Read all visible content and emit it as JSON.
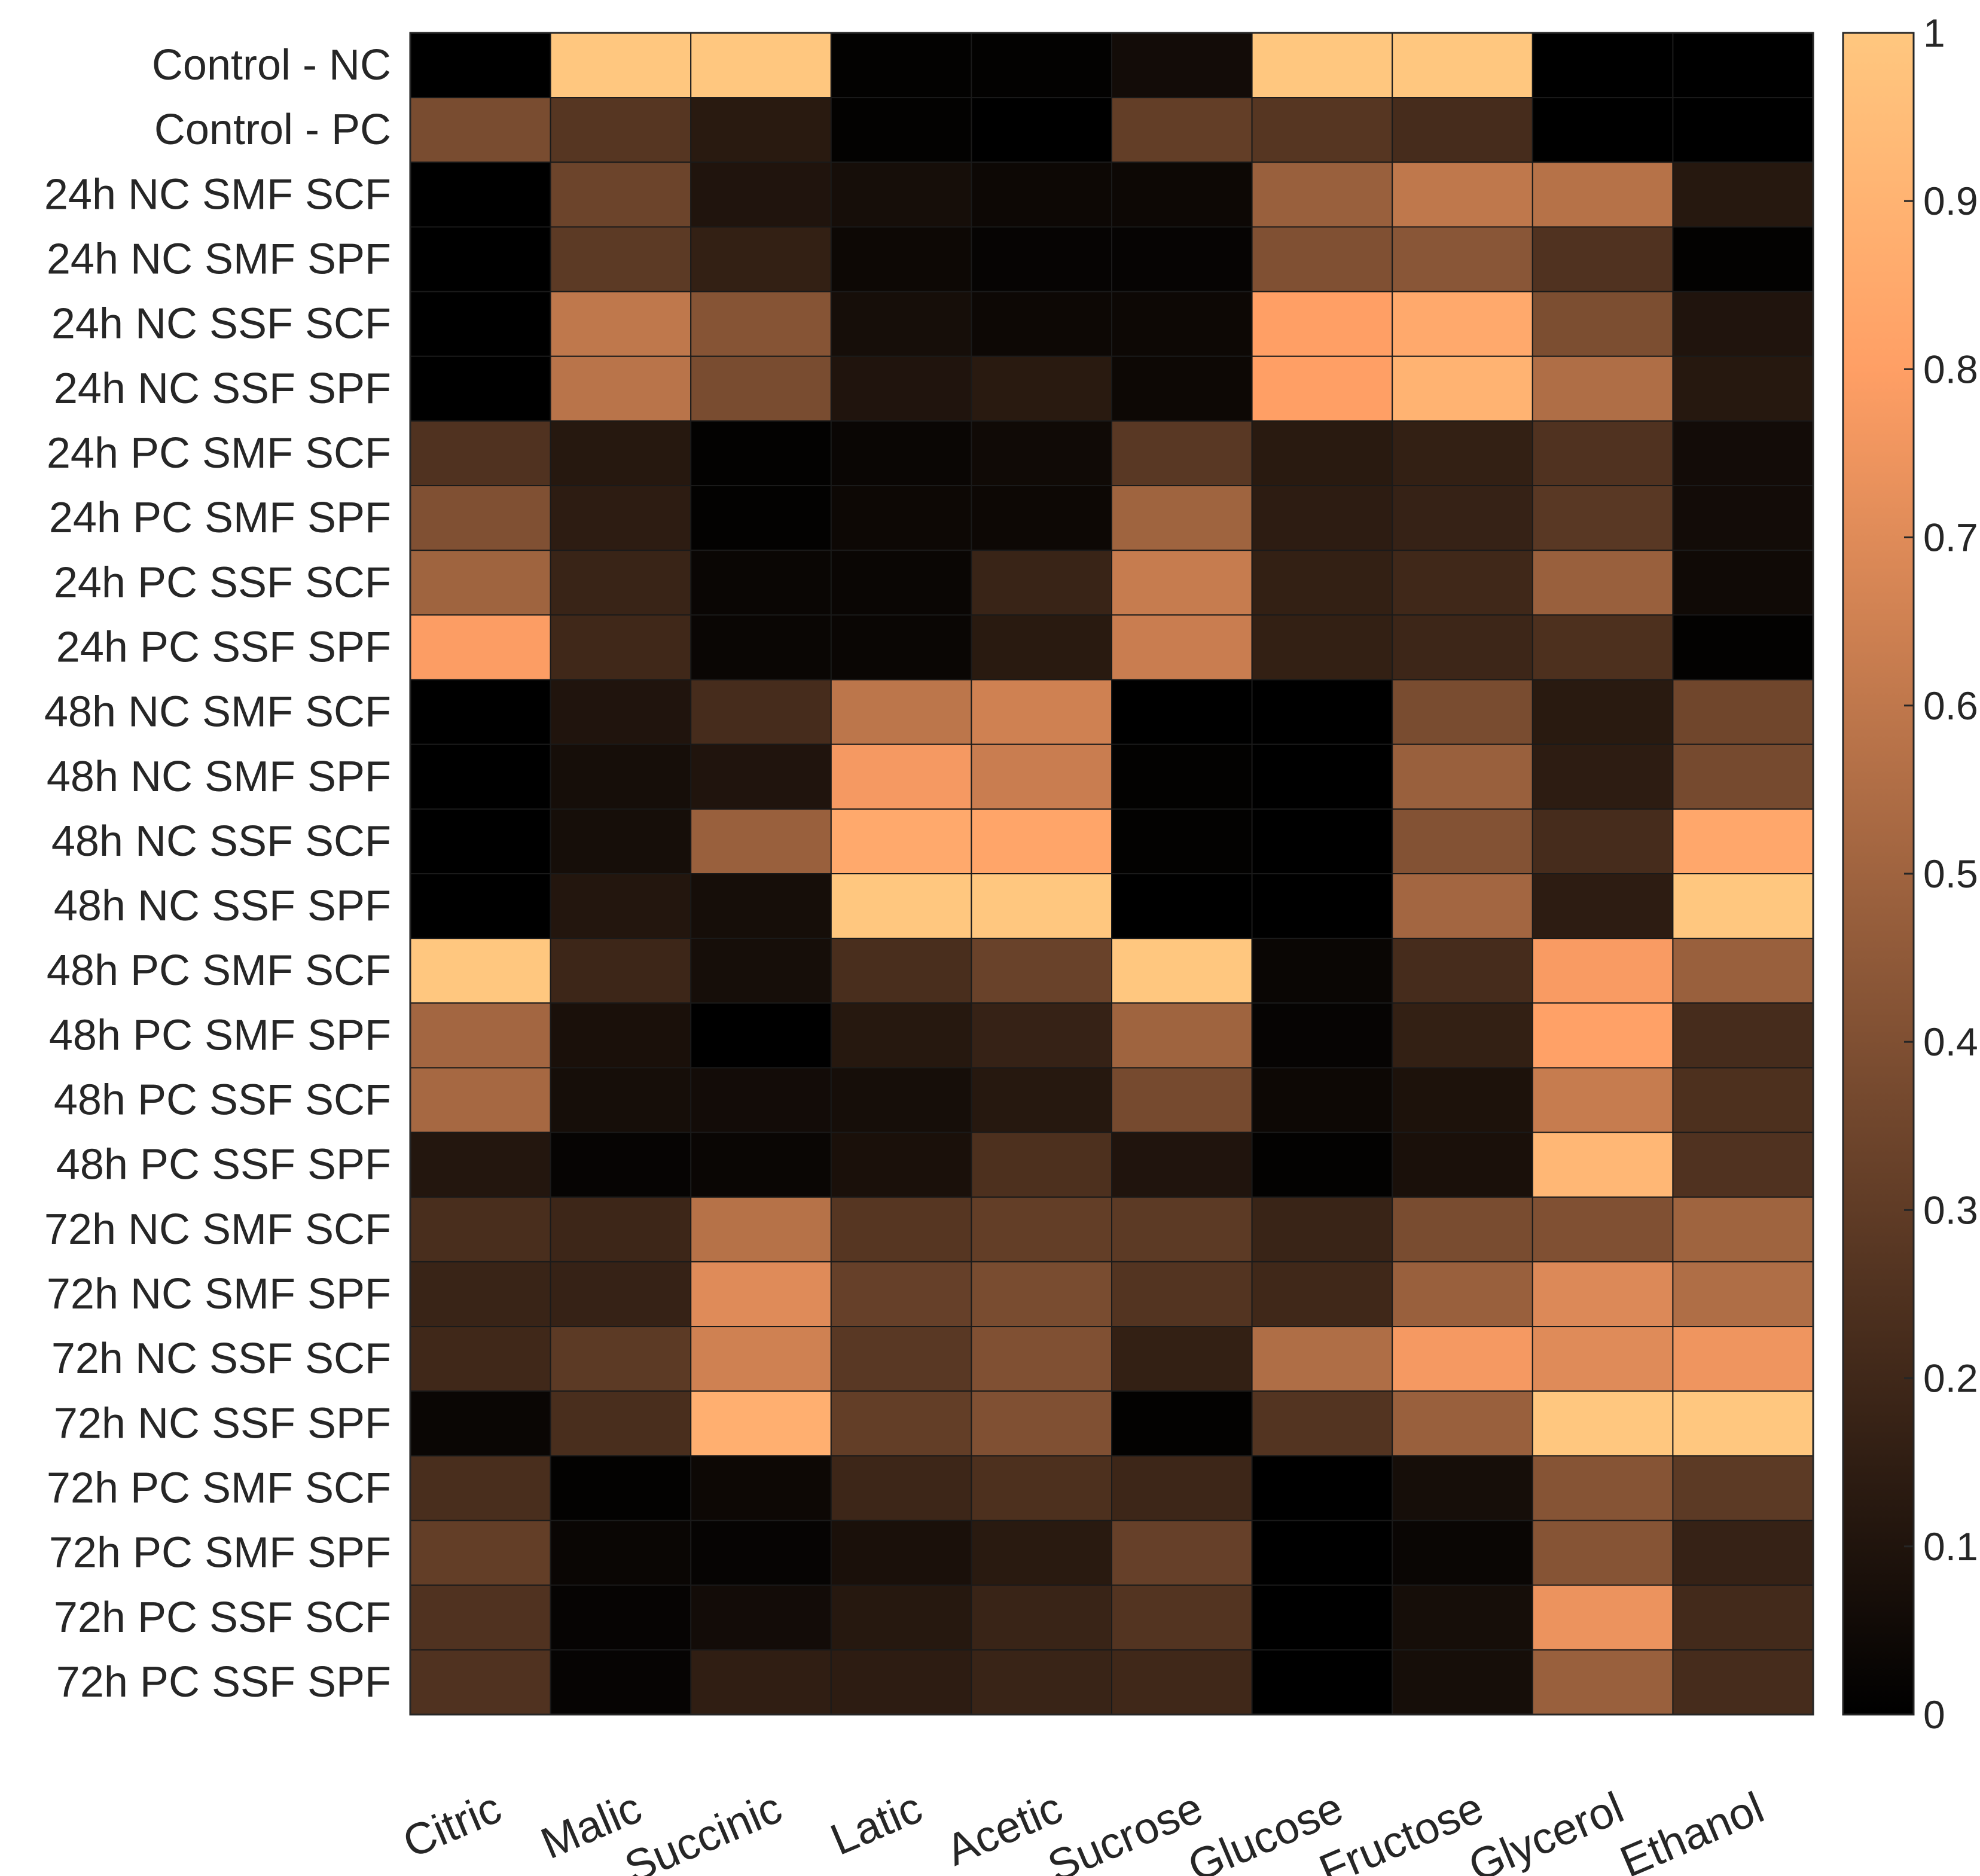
{
  "chart_data": {
    "type": "heatmap",
    "title": "",
    "xlabel": "",
    "ylabel": "",
    "colormap": "copper",
    "clim": [
      0,
      1
    ],
    "colorbar": {
      "ticks": [
        0,
        0.1,
        0.2,
        0.3,
        0.4,
        0.5,
        0.6,
        0.7,
        0.8,
        0.9,
        1
      ],
      "tick_labels": [
        "0",
        "0.1",
        "0.2",
        "0.3",
        "0.4",
        "0.5",
        "0.6",
        "0.7",
        "0.8",
        "0.9",
        "1"
      ]
    },
    "columns": [
      "Citric",
      "Malic",
      "Succinic",
      "Latic",
      "Acetic",
      "Sucrose",
      "Glucose",
      "Fructose",
      "Glycerol",
      "Ethanol"
    ],
    "rows": [
      "Control - NC",
      "Control - PC",
      "24h NC SMF SCF",
      "24h NC SMF SPF",
      "24h NC SSF SCF",
      "24h NC SSF SPF",
      "24h PC SMF SCF",
      "24h PC SMF SPF",
      "24h PC SSF SCF",
      "24h PC SSF SPF",
      "48h NC SMF SCF",
      "48h NC SMF SPF",
      "48h NC SSF SCF",
      "48h NC SSF SPF",
      "48h PC SMF SCF",
      "48h PC SMF SPF",
      "48h PC SSF SCF",
      "48h PC SSF SPF",
      "72h NC SMF SCF",
      "72h NC SMF SPF",
      "72h NC SSF SCF",
      "72h NC SSF SPF",
      "72h PC SMF SCF",
      "72h PC SMF SPF",
      "72h PC SSF SCF",
      "72h PC SSF SPF"
    ],
    "values": [
      [
        0.0,
        1.0,
        1.0,
        0.01,
        0.01,
        0.06,
        1.0,
        1.0,
        0.0,
        0.0
      ],
      [
        0.38,
        0.27,
        0.13,
        0.01,
        0.0,
        0.31,
        0.27,
        0.22,
        0.0,
        0.0
      ],
      [
        0.0,
        0.34,
        0.1,
        0.07,
        0.04,
        0.04,
        0.48,
        0.6,
        0.57,
        0.12
      ],
      [
        0.0,
        0.29,
        0.16,
        0.04,
        0.02,
        0.02,
        0.4,
        0.43,
        0.25,
        0.01
      ],
      [
        0.0,
        0.6,
        0.42,
        0.07,
        0.04,
        0.04,
        0.8,
        0.85,
        0.39,
        0.1
      ],
      [
        0.0,
        0.58,
        0.38,
        0.1,
        0.13,
        0.04,
        0.8,
        0.9,
        0.55,
        0.12
      ],
      [
        0.25,
        0.12,
        0.01,
        0.03,
        0.05,
        0.28,
        0.13,
        0.16,
        0.25,
        0.06
      ],
      [
        0.4,
        0.14,
        0.01,
        0.04,
        0.04,
        0.5,
        0.14,
        0.17,
        0.28,
        0.06
      ],
      [
        0.5,
        0.18,
        0.03,
        0.03,
        0.18,
        0.62,
        0.16,
        0.2,
        0.48,
        0.05
      ],
      [
        0.79,
        0.2,
        0.03,
        0.03,
        0.13,
        0.63,
        0.16,
        0.19,
        0.24,
        0.01
      ],
      [
        0.0,
        0.1,
        0.22,
        0.59,
        0.65,
        0.0,
        0.0,
        0.38,
        0.13,
        0.35
      ],
      [
        0.0,
        0.07,
        0.1,
        0.77,
        0.63,
        0.01,
        0.0,
        0.48,
        0.14,
        0.37
      ],
      [
        0.0,
        0.07,
        0.48,
        0.85,
        0.83,
        0.01,
        0.0,
        0.41,
        0.22,
        0.84
      ],
      [
        0.0,
        0.11,
        0.07,
        1.0,
        1.0,
        0.0,
        0.0,
        0.51,
        0.14,
        1.0
      ],
      [
        1.0,
        0.19,
        0.07,
        0.23,
        0.33,
        1.0,
        0.03,
        0.22,
        0.78,
        0.48
      ],
      [
        0.51,
        0.08,
        0.0,
        0.12,
        0.17,
        0.5,
        0.02,
        0.16,
        0.81,
        0.22
      ],
      [
        0.52,
        0.07,
        0.06,
        0.07,
        0.12,
        0.37,
        0.04,
        0.09,
        0.62,
        0.24
      ],
      [
        0.11,
        0.02,
        0.03,
        0.08,
        0.24,
        0.1,
        0.01,
        0.08,
        0.92,
        0.25
      ],
      [
        0.23,
        0.19,
        0.57,
        0.27,
        0.31,
        0.29,
        0.18,
        0.38,
        0.4,
        0.5
      ],
      [
        0.18,
        0.17,
        0.7,
        0.32,
        0.38,
        0.26,
        0.2,
        0.48,
        0.69,
        0.55
      ],
      [
        0.2,
        0.29,
        0.65,
        0.28,
        0.4,
        0.16,
        0.55,
        0.77,
        0.7,
        0.75
      ],
      [
        0.03,
        0.23,
        0.88,
        0.31,
        0.4,
        0.01,
        0.26,
        0.48,
        1.0,
        1.0
      ],
      [
        0.23,
        0.01,
        0.04,
        0.19,
        0.24,
        0.19,
        0.0,
        0.07,
        0.42,
        0.29
      ],
      [
        0.31,
        0.03,
        0.02,
        0.08,
        0.13,
        0.32,
        0.0,
        0.03,
        0.42,
        0.17
      ],
      [
        0.25,
        0.02,
        0.06,
        0.12,
        0.18,
        0.26,
        0.0,
        0.07,
        0.74,
        0.21
      ],
      [
        0.25,
        0.02,
        0.15,
        0.14,
        0.18,
        0.2,
        0.0,
        0.07,
        0.48,
        0.22
      ]
    ]
  }
}
